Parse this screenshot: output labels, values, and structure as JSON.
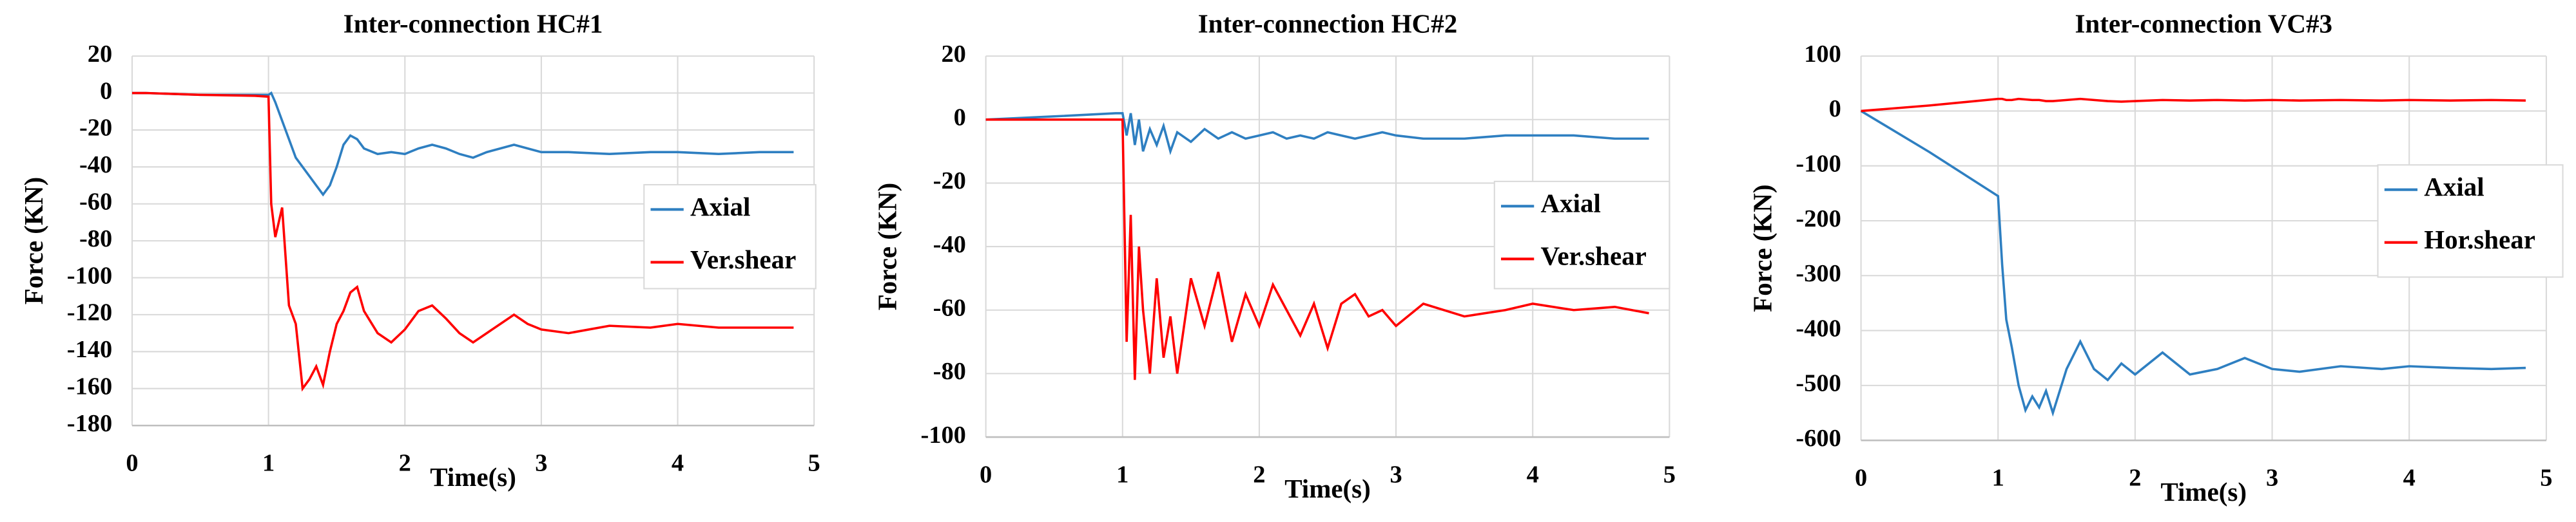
{
  "chart_data": [
    {
      "type": "line",
      "title": "Inter-connection HC#1",
      "xlabel": "Time(s)",
      "ylabel": "Force (KN)",
      "x": [
        0,
        0.1,
        0.5,
        0.9,
        1.0,
        1.02,
        1.05,
        1.1,
        1.15,
        1.2,
        1.25,
        1.3,
        1.35,
        1.4,
        1.45,
        1.5,
        1.55,
        1.6,
        1.65,
        1.7,
        1.8,
        1.9,
        2.0,
        2.1,
        2.2,
        2.3,
        2.4,
        2.5,
        2.6,
        2.7,
        2.8,
        2.9,
        3.0,
        3.2,
        3.5,
        3.8,
        4.0,
        4.3,
        4.6,
        4.85
      ],
      "series": [
        {
          "name": "Axial",
          "color": "#2e7fc1",
          "values": [
            0,
            0,
            -1,
            -1,
            -1,
            0,
            -5,
            -15,
            -25,
            -35,
            -40,
            -45,
            -50,
            -55,
            -50,
            -40,
            -28,
            -23,
            -25,
            -30,
            -33,
            -32,
            -33,
            -30,
            -28,
            -30,
            -33,
            -35,
            -32,
            -30,
            -28,
            -30,
            -32,
            -32,
            -33,
            -32,
            -32,
            -33,
            -32,
            -32
          ]
        },
        {
          "name": "Ver.shear",
          "color": "#ff0000",
          "values": [
            0,
            0,
            -1,
            -1.5,
            -2,
            -60,
            -78,
            -62,
            -115,
            -125,
            -160,
            -155,
            -148,
            -158,
            -140,
            -125,
            -118,
            -108,
            -105,
            -118,
            -130,
            -135,
            -128,
            -118,
            -115,
            -122,
            -130,
            -135,
            -130,
            -125,
            -120,
            -125,
            -128,
            -130,
            -126,
            -127,
            -125,
            -127,
            -127,
            -127
          ]
        }
      ],
      "xlim": [
        0,
        5
      ],
      "xticks": [
        0,
        1,
        2,
        3,
        4,
        5
      ],
      "ylim": [
        -180,
        20
      ],
      "yticks": [
        20,
        0,
        -20,
        -40,
        -60,
        -80,
        -100,
        -120,
        -140,
        -160,
        -180
      ],
      "grid": true
    },
    {
      "type": "line",
      "title": "Inter-connection HC#2",
      "xlabel": "Time(s)",
      "ylabel": "Force (KN)",
      "x": [
        0,
        0.5,
        0.95,
        1.0,
        1.03,
        1.06,
        1.09,
        1.12,
        1.15,
        1.2,
        1.25,
        1.3,
        1.35,
        1.4,
        1.5,
        1.6,
        1.7,
        1.8,
        1.9,
        2.0,
        2.1,
        2.2,
        2.3,
        2.4,
        2.5,
        2.6,
        2.7,
        2.8,
        2.9,
        3.0,
        3.2,
        3.5,
        3.8,
        4.0,
        4.3,
        4.6,
        4.85
      ],
      "series": [
        {
          "name": "Axial",
          "color": "#2e7fc1",
          "values": [
            0,
            1,
            2,
            2,
            -5,
            2,
            -8,
            0,
            -10,
            -3,
            -8,
            -2,
            -10,
            -4,
            -7,
            -3,
            -6,
            -4,
            -6,
            -5,
            -4,
            -6,
            -5,
            -6,
            -4,
            -5,
            -6,
            -5,
            -4,
            -5,
            -6,
            -6,
            -5,
            -5,
            -5,
            -6,
            -6
          ]
        },
        {
          "name": "Ver.shear",
          "color": "#ff0000",
          "values": [
            0,
            0,
            0,
            0,
            -70,
            -30,
            -82,
            -40,
            -60,
            -80,
            -50,
            -75,
            -62,
            -80,
            -50,
            -65,
            -48,
            -70,
            -55,
            -65,
            -52,
            -60,
            -68,
            -58,
            -72,
            -58,
            -55,
            -62,
            -60,
            -65,
            -58,
            -62,
            -60,
            -58,
            -60,
            -59,
            -61
          ]
        }
      ],
      "xlim": [
        0,
        5
      ],
      "xticks": [
        0,
        1,
        2,
        3,
        4,
        5
      ],
      "ylim": [
        -100,
        20
      ],
      "yticks": [
        20,
        0,
        -20,
        -40,
        -60,
        -80,
        -100
      ],
      "grid": true
    },
    {
      "type": "line",
      "title": "Inter-connection VC#3",
      "xlabel": "Time(s)",
      "ylabel": "Force (KN)",
      "x": [
        0,
        0.5,
        1.0,
        1.03,
        1.06,
        1.1,
        1.15,
        1.2,
        1.25,
        1.3,
        1.35,
        1.4,
        1.5,
        1.6,
        1.7,
        1.8,
        1.9,
        2.0,
        2.2,
        2.4,
        2.6,
        2.8,
        3.0,
        3.2,
        3.5,
        3.8,
        4.0,
        4.3,
        4.6,
        4.85
      ],
      "series": [
        {
          "name": "Axial",
          "color": "#2e7fc1",
          "values": [
            0,
            -75,
            -155,
            -280,
            -380,
            -430,
            -500,
            -545,
            -520,
            -540,
            -510,
            -550,
            -470,
            -420,
            -470,
            -490,
            -460,
            -480,
            -440,
            -480,
            -470,
            -450,
            -470,
            -475,
            -465,
            -470,
            -465,
            -468,
            -470,
            -468
          ]
        },
        {
          "name": "Hor.shear",
          "color": "#ff0000",
          "values": [
            0,
            10,
            22,
            22,
            20,
            20,
            22,
            21,
            20,
            20,
            18,
            18,
            20,
            22,
            20,
            18,
            17,
            18,
            20,
            19,
            20,
            19,
            20,
            19,
            20,
            19,
            20,
            19,
            20,
            19
          ]
        }
      ],
      "xlim": [
        0,
        5
      ],
      "xticks": [
        0,
        1,
        2,
        3,
        4,
        5
      ],
      "ylim": [
        -600,
        100
      ],
      "yticks": [
        100,
        0,
        -100,
        -200,
        -300,
        -400,
        -500,
        -600
      ],
      "grid": true
    }
  ]
}
